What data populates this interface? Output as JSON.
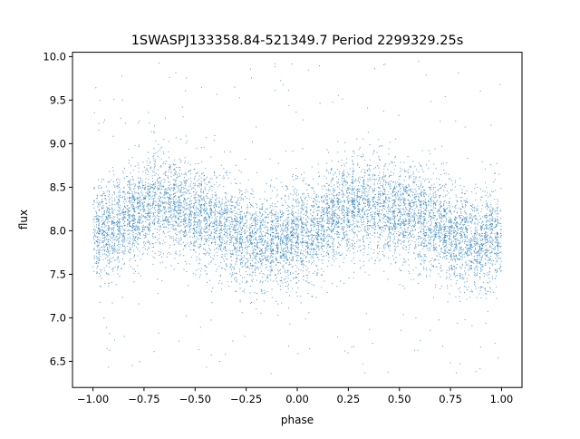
{
  "chart_data": {
    "type": "scatter",
    "title": "1SWASPJ133358.84-521349.7 Period 2299329.25s",
    "xlabel": "phase",
    "ylabel": "flux",
    "xlim": [
      -1.1,
      1.1
    ],
    "ylim": [
      6.2,
      10.05
    ],
    "x_ticks": [
      -1.0,
      -0.75,
      -0.5,
      -0.25,
      0.0,
      0.25,
      0.5,
      0.75,
      1.0
    ],
    "x_tick_labels": [
      "−1.00",
      "−0.75",
      "−0.50",
      "−0.25",
      "0.00",
      "0.25",
      "0.50",
      "0.75",
      "1.00"
    ],
    "y_ticks": [
      6.5,
      7.0,
      7.5,
      8.0,
      8.5,
      9.0,
      9.5,
      10.0
    ],
    "y_tick_labels": [
      "6.5",
      "7.0",
      "7.5",
      "8.0",
      "8.5",
      "9.0",
      "9.5",
      "10.0"
    ],
    "grid": false,
    "legend": "none",
    "point_color": "#1f77b4",
    "series": [
      {
        "phase_range": [
          -1.0,
          1.0
        ],
        "mean_flux_curve": {
          "phase": [
            -1.0,
            -0.9,
            -0.8,
            -0.7,
            -0.6,
            -0.5,
            -0.4,
            -0.3,
            -0.2,
            -0.1,
            0.0,
            0.1,
            0.2,
            0.3,
            0.4,
            0.5,
            0.6,
            0.7,
            0.8,
            0.9,
            1.0
          ],
          "flux": [
            7.95,
            8.05,
            8.2,
            8.35,
            8.3,
            8.2,
            8.1,
            7.95,
            7.85,
            7.9,
            7.95,
            8.05,
            8.2,
            8.3,
            8.3,
            8.2,
            8.15,
            8.05,
            7.9,
            7.85,
            7.95
          ]
        },
        "typical_scatter_sigma": 0.28,
        "outlier_flux_range": [
          6.35,
          9.95
        ]
      }
    ]
  }
}
